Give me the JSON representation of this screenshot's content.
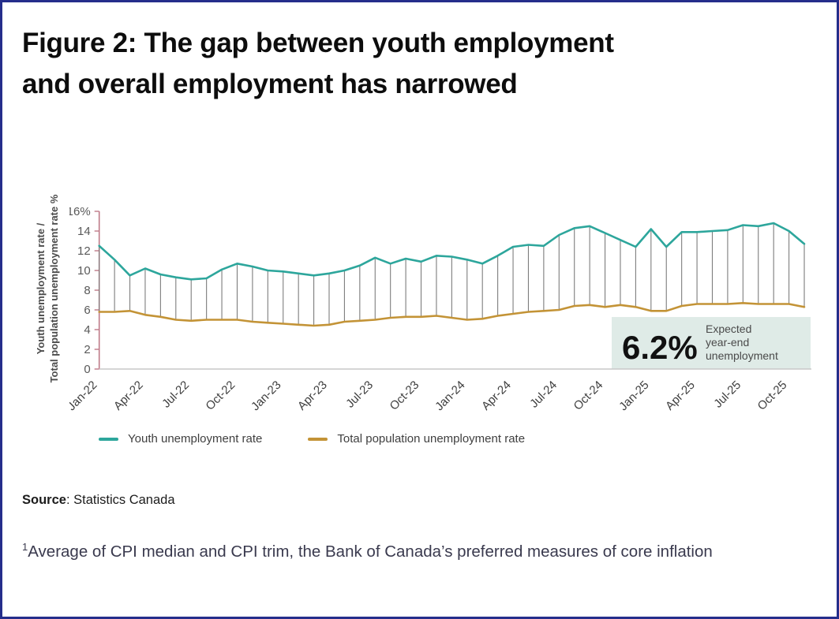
{
  "figure": {
    "title_lines": [
      "Figure 2: The gap between youth employment",
      "and overall employment has narrowed"
    ],
    "title": "Figure 2: The gap between youth employment and overall employment has narrowed"
  },
  "axis": {
    "ylabel_line1": "Youth unemployment rate /",
    "ylabel_line2": "Total population unemployment rate %"
  },
  "legend": [
    {
      "label": "Youth unemployment rate",
      "color": "#2da69c"
    },
    {
      "label": "Total population unemployment rate",
      "color": "#c39336"
    }
  ],
  "source": {
    "label": "Source",
    "rest": ": Statistics Canada"
  },
  "footnote": {
    "superscript": "1",
    "text": "Average of CPI median and CPI trim, the Bank of Canada’s preferred measures of core inflation"
  },
  "colors": {
    "youth_line": "#2da69c",
    "total_line": "#c39336",
    "connector": "#7d7d7d",
    "y_axis": "#bf7a88",
    "x_axis": "#c8c8c8",
    "tick_text": "#595959",
    "annotation_bg": "#dfebe7",
    "page_border": "#252e8b"
  },
  "chart_data": {
    "type": "line",
    "title": "Figure 2: The gap between youth employment and overall employment has narrowed",
    "xlabel": "",
    "ylabel": "Youth unemployment rate / Total population unemployment rate %",
    "ylim": [
      0,
      16
    ],
    "y_ticks": [
      0,
      2,
      4,
      6,
      8,
      10,
      12,
      14,
      16
    ],
    "y_top_tick_label": "16%",
    "grid": false,
    "legend_position": "bottom",
    "connectors_between_series": true,
    "x": [
      "Jan-22",
      "Feb-22",
      "Mar-22",
      "Apr-22",
      "May-22",
      "Jun-22",
      "Jul-22",
      "Aug-22",
      "Sep-22",
      "Oct-22",
      "Nov-22",
      "Dec-22",
      "Jan-23",
      "Feb-23",
      "Mar-23",
      "Apr-23",
      "May-23",
      "Jun-23",
      "Jul-23",
      "Aug-23",
      "Sep-23",
      "Oct-23",
      "Nov-23",
      "Dec-23",
      "Jan-24",
      "Feb-24",
      "Mar-24",
      "Apr-24",
      "May-24",
      "Jun-24",
      "Jul-24",
      "Aug-24",
      "Sep-24",
      "Oct-24",
      "Nov-24",
      "Dec-24",
      "Jan-25",
      "Feb-25",
      "Mar-25",
      "Apr-25",
      "May-25",
      "Jun-25",
      "Jul-25",
      "Aug-25",
      "Sep-25",
      "Oct-25",
      "Nov-25"
    ],
    "x_tick_labels": [
      "Jan-22",
      "Apr-22",
      "Jul-22",
      "Oct-22",
      "Jan-23",
      "Apr-23",
      "Jul-23",
      "Oct-23",
      "Jan-24",
      "Apr-24",
      "Jul-24",
      "Oct-24",
      "Jan-25",
      "Apr-25",
      "Jul-25",
      "Oct-25"
    ],
    "series": [
      {
        "name": "Youth unemployment rate",
        "color": "#2da69c",
        "values": [
          12.5,
          11.1,
          9.5,
          10.2,
          9.6,
          9.3,
          9.1,
          9.2,
          10.1,
          10.7,
          10.4,
          10.0,
          9.9,
          9.7,
          9.5,
          9.7,
          10.0,
          10.5,
          11.3,
          10.7,
          11.2,
          10.9,
          11.5,
          11.4,
          11.1,
          10.7,
          11.5,
          12.4,
          12.6,
          12.5,
          13.6,
          14.3,
          14.5,
          13.8,
          13.1,
          12.4,
          14.2,
          12.4,
          13.9,
          13.9,
          14.0,
          14.1,
          14.6,
          14.5,
          14.8,
          14.0,
          12.7
        ]
      },
      {
        "name": "Total population unemployment rate",
        "color": "#c39336",
        "values": [
          5.8,
          5.8,
          5.9,
          5.5,
          5.3,
          5.0,
          4.9,
          5.0,
          5.0,
          5.0,
          4.8,
          4.7,
          4.6,
          4.5,
          4.4,
          4.5,
          4.8,
          4.9,
          5.0,
          5.2,
          5.3,
          5.3,
          5.4,
          5.2,
          5.0,
          5.1,
          5.4,
          5.6,
          5.8,
          5.9,
          6.0,
          6.4,
          6.5,
          6.3,
          6.5,
          6.3,
          5.9,
          5.9,
          6.4,
          6.6,
          6.6,
          6.6,
          6.7,
          6.6,
          6.6,
          6.6,
          6.3
        ]
      }
    ],
    "annotation": {
      "value": "6.2%",
      "label": "Expected year-end unemployment",
      "lines": [
        "Expected",
        "year-end",
        "unemployment"
      ],
      "bg": "#dfebe7"
    }
  }
}
